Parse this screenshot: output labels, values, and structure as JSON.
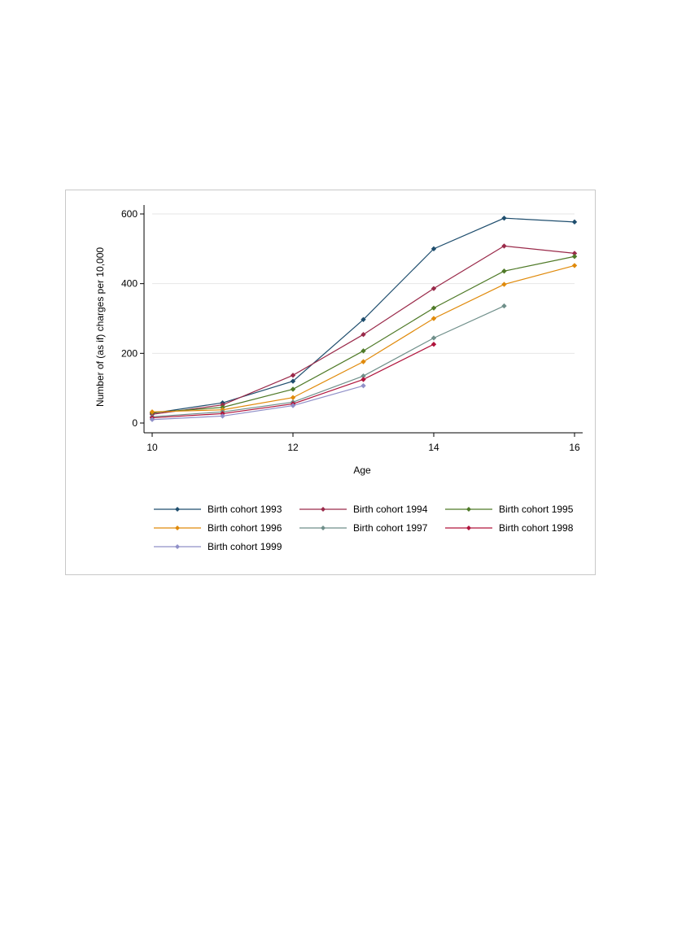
{
  "chart_data": {
    "type": "line",
    "title": "",
    "xlabel": "Age",
    "ylabel": "Number of (as if) charges per 10,000",
    "xlim": [
      10,
      16
    ],
    "ylim": [
      0,
      600
    ],
    "xticks": [
      10,
      12,
      14,
      16
    ],
    "yticks": [
      0,
      200,
      400,
      600
    ],
    "grid": true,
    "legend_position": "bottom",
    "series": [
      {
        "name": "Birth cohort 1993",
        "color": "#1f4e6e",
        "x": [
          10,
          11,
          12,
          13,
          14,
          15,
          16
        ],
        "y": [
          28,
          58,
          120,
          297,
          500,
          588,
          577
        ]
      },
      {
        "name": "Birth cohort 1994",
        "color": "#9a2a4a",
        "x": [
          10,
          11,
          12,
          13,
          14,
          15,
          16
        ],
        "y": [
          25,
          52,
          137,
          254,
          386,
          508,
          487
        ]
      },
      {
        "name": "Birth cohort 1995",
        "color": "#4f7a28",
        "x": [
          10,
          11,
          12,
          13,
          14,
          15,
          16
        ],
        "y": [
          30,
          45,
          97,
          207,
          330,
          436,
          478
        ]
      },
      {
        "name": "Birth cohort 1996",
        "color": "#e08a0b",
        "x": [
          10,
          11,
          12,
          13,
          14,
          15,
          16
        ],
        "y": [
          32,
          38,
          73,
          176,
          300,
          398,
          452
        ]
      },
      {
        "name": "Birth cohort 1997",
        "color": "#6f8f8a",
        "x": [
          10,
          11,
          12,
          13,
          14,
          15
        ],
        "y": [
          18,
          32,
          60,
          135,
          244,
          336
        ]
      },
      {
        "name": "Birth cohort 1998",
        "color": "#b0143c",
        "x": [
          10,
          11,
          12,
          13,
          14
        ],
        "y": [
          15,
          27,
          55,
          125,
          226
        ]
      },
      {
        "name": "Birth cohort 1999",
        "color": "#9090c8",
        "x": [
          10,
          11,
          12,
          13
        ],
        "y": [
          10,
          20,
          50,
          107
        ]
      }
    ]
  }
}
